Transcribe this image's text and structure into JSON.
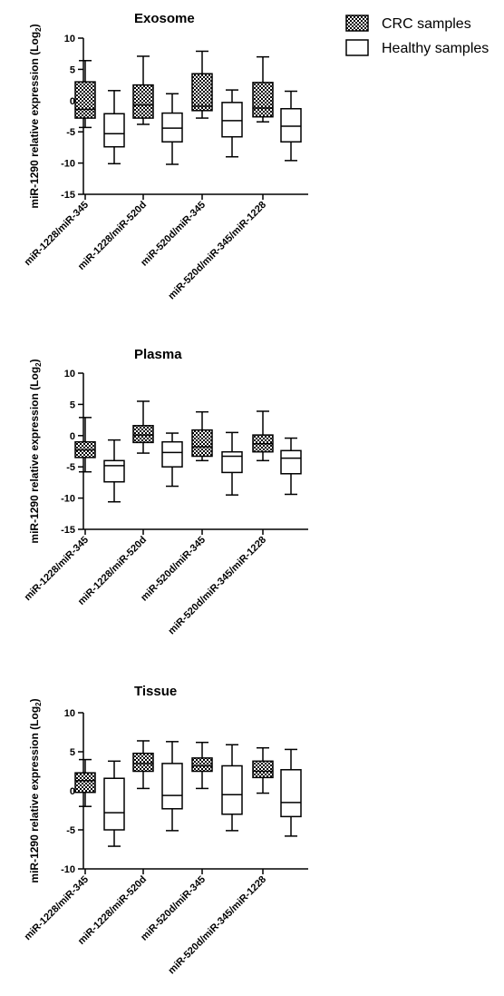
{
  "legend": {
    "items": [
      {
        "label": "CRC samples",
        "style": "hatched"
      },
      {
        "label": "Healthy samples",
        "style": "open"
      }
    ]
  },
  "colors": {
    "hatch_fg": "#000000",
    "hatch_bg": "#ffffff",
    "line": "#000000"
  },
  "chart_data": [
    {
      "type": "boxplot",
      "title": "Exosome",
      "ylabel": "miR-1290 relative expression (Log",
      "ylabel_sub": "2",
      "ylabel_close": ")",
      "ylim": [
        -15,
        10
      ],
      "yticks": [
        -15,
        -10,
        -5,
        0,
        5,
        10
      ],
      "categories": [
        "miR-1228/miR-345",
        "miR-1228/miR-520d",
        "miR-520d/miR-345",
        "miR-520d/miR-345/miR-1228"
      ],
      "series": [
        {
          "name": "CRC samples",
          "boxes": [
            {
              "min": -4.3,
              "q1": -2.8,
              "median": -1.4,
              "q3": 3.0,
              "max": 6.4
            },
            {
              "min": -3.8,
              "q1": -2.8,
              "median": -0.7,
              "q3": 2.5,
              "max": 7.1
            },
            {
              "min": -2.8,
              "q1": -1.6,
              "median": -0.9,
              "q3": 4.3,
              "max": 7.9
            },
            {
              "min": -3.4,
              "q1": -2.6,
              "median": -1.2,
              "q3": 2.9,
              "max": 7.0
            }
          ]
        },
        {
          "name": "Healthy samples",
          "boxes": [
            {
              "min": -10.1,
              "q1": -7.4,
              "median": -5.3,
              "q3": -2.1,
              "max": 1.6
            },
            {
              "min": -10.2,
              "q1": -6.6,
              "median": -4.4,
              "q3": -2.0,
              "max": 1.1
            },
            {
              "min": -9.0,
              "q1": -5.8,
              "median": -3.2,
              "q3": -0.3,
              "max": 1.7
            },
            {
              "min": -9.6,
              "q1": -6.6,
              "median": -4.1,
              "q3": -1.3,
              "max": 1.5
            }
          ]
        }
      ]
    },
    {
      "type": "boxplot",
      "title": "Plasma",
      "ylabel": "miR-1290 relative expression (Log",
      "ylabel_sub": "2",
      "ylabel_close": ")",
      "ylim": [
        -15,
        10
      ],
      "yticks": [
        -15,
        -10,
        -5,
        0,
        5,
        10
      ],
      "categories": [
        "miR-1228/miR-345",
        "miR-1228/miR-520d",
        "miR-520d/miR-345",
        "miR-520d/miR-345/miR-1228"
      ],
      "series": [
        {
          "name": "CRC samples",
          "boxes": [
            {
              "min": -5.8,
              "q1": -3.5,
              "median": -2.3,
              "q3": -1.0,
              "max": 2.9
            },
            {
              "min": -2.8,
              "q1": -1.1,
              "median": 0.1,
              "q3": 1.6,
              "max": 5.5
            },
            {
              "min": -4.0,
              "q1": -3.3,
              "median": -1.8,
              "q3": 0.9,
              "max": 3.8
            },
            {
              "min": -4.0,
              "q1": -2.6,
              "median": -1.3,
              "q3": 0.1,
              "max": 3.9
            }
          ]
        },
        {
          "name": "Healthy samples",
          "boxes": [
            {
              "min": -10.6,
              "q1": -7.4,
              "median": -4.8,
              "q3": -4.0,
              "max": -0.7
            },
            {
              "min": -8.1,
              "q1": -5.0,
              "median": -2.7,
              "q3": -1.0,
              "max": 0.4
            },
            {
              "min": -9.5,
              "q1": -5.9,
              "median": -3.3,
              "q3": -2.6,
              "max": 0.5
            },
            {
              "min": -9.4,
              "q1": -6.1,
              "median": -3.6,
              "q3": -2.4,
              "max": -0.4
            }
          ]
        }
      ]
    },
    {
      "type": "boxplot",
      "title": "Tissue",
      "ylabel": "miR-1290 relative expression (Log",
      "ylabel_sub": "2",
      "ylabel_close": ")",
      "ylim": [
        -10,
        10
      ],
      "yticks": [
        -10,
        -5,
        0,
        5,
        10
      ],
      "categories": [
        "miR-1228/miR-345",
        "miR-1228/miR-520d",
        "miR-520d/miR-345",
        "miR-520d/miR-345/miR-1228"
      ],
      "series": [
        {
          "name": "CRC samples",
          "boxes": [
            {
              "min": -2.0,
              "q1": -0.2,
              "median": 1.3,
              "q3": 2.3,
              "max": 4.0
            },
            {
              "min": 0.3,
              "q1": 2.5,
              "median": 3.5,
              "q3": 4.8,
              "max": 6.4
            },
            {
              "min": 0.3,
              "q1": 2.5,
              "median": 3.2,
              "q3": 4.2,
              "max": 6.2
            },
            {
              "min": -0.3,
              "q1": 1.7,
              "median": 2.5,
              "q3": 3.8,
              "max": 5.5
            }
          ]
        },
        {
          "name": "Healthy samples",
          "boxes": [
            {
              "min": -7.1,
              "q1": -5.0,
              "median": -2.8,
              "q3": 1.6,
              "max": 3.8
            },
            {
              "min": -5.1,
              "q1": -2.3,
              "median": -0.6,
              "q3": 3.5,
              "max": 6.3
            },
            {
              "min": -5.1,
              "q1": -3.0,
              "median": -0.5,
              "q3": 3.2,
              "max": 5.9
            },
            {
              "min": -5.8,
              "q1": -3.3,
              "median": -1.5,
              "q3": 2.7,
              "max": 5.3
            }
          ]
        }
      ]
    }
  ]
}
